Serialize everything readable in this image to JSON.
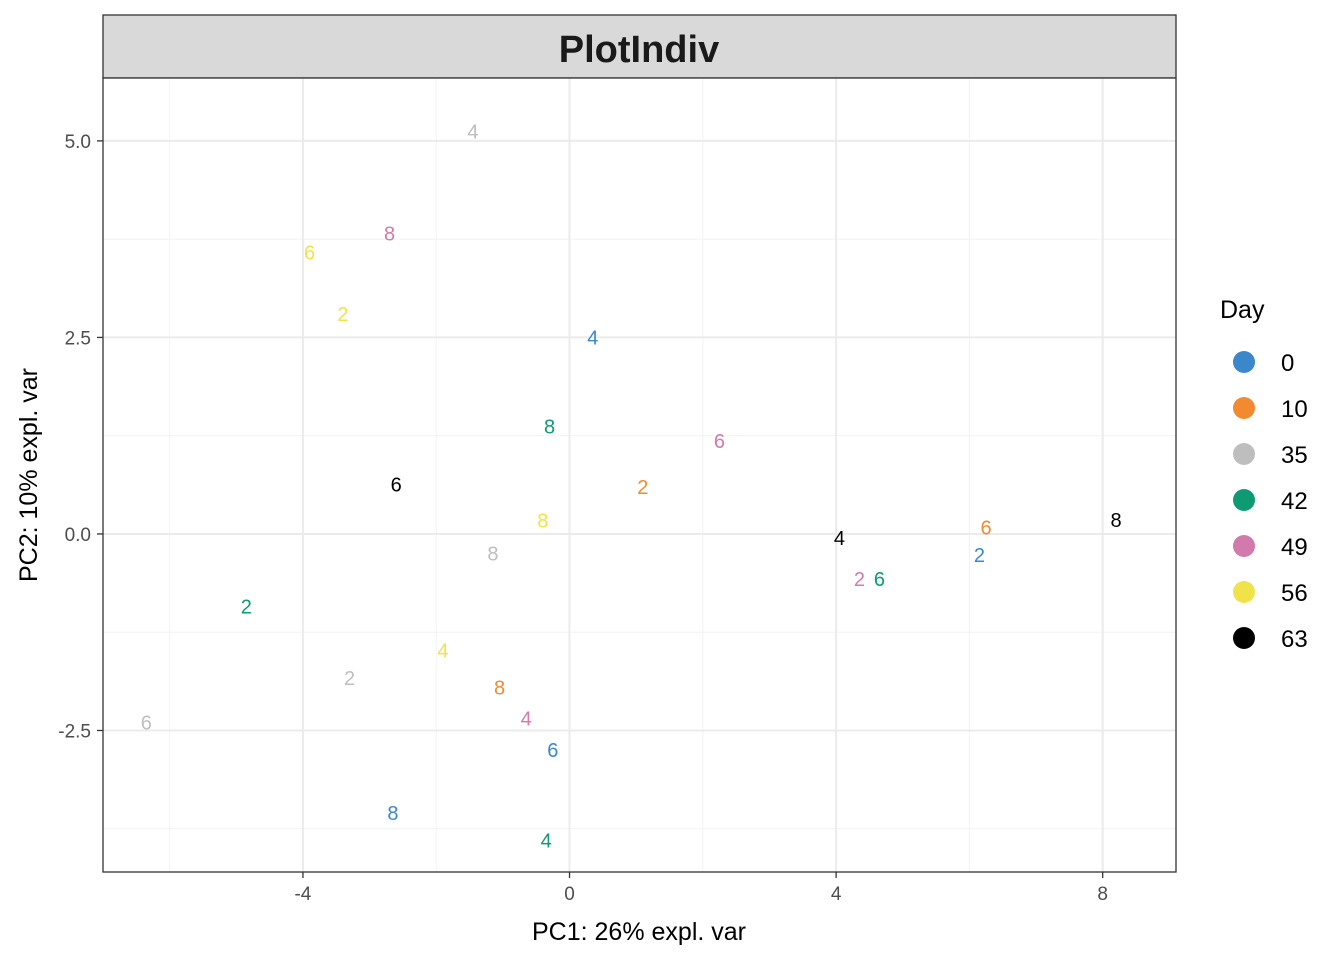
{
  "chart_data": {
    "type": "scatter",
    "title": "PlotIndiv",
    "xlabel": "PC1: 26% expl. var",
    "ylabel": "PC2: 10% expl. var",
    "xlim": [
      -7.0,
      9.1
    ],
    "ylim": [
      -4.3,
      5.8
    ],
    "x_ticks": [
      -4,
      0,
      4,
      8
    ],
    "x_tick_labels": [
      "-4",
      "0",
      "4",
      "8"
    ],
    "y_ticks": [
      -2.5,
      0.0,
      2.5,
      5.0
    ],
    "y_tick_labels": [
      "-2.5",
      "0.0",
      "2.5",
      "5.0"
    ],
    "grid": true,
    "legend": {
      "title": "Day",
      "position": "right",
      "entries": [
        {
          "label": "0",
          "color": "#3a87cb"
        },
        {
          "label": "10",
          "color": "#f28a30"
        },
        {
          "label": "35",
          "color": "#bebebe"
        },
        {
          "label": "42",
          "color": "#0e9a72"
        },
        {
          "label": "49",
          "color": "#d27aab"
        },
        {
          "label": "56",
          "color": "#f0e34a"
        },
        {
          "label": "63",
          "color": "#000000"
        }
      ]
    },
    "series": [
      {
        "name": "0",
        "color": "#3a87cb",
        "points": [
          {
            "x": 0.35,
            "y": 2.5,
            "label": "4"
          },
          {
            "x": 6.15,
            "y": -0.27,
            "label": "2"
          },
          {
            "x": -0.25,
            "y": -2.75,
            "label": "6"
          },
          {
            "x": -2.65,
            "y": -3.55,
            "label": "8"
          }
        ]
      },
      {
        "name": "10",
        "color": "#f28a30",
        "points": [
          {
            "x": 1.1,
            "y": 0.6,
            "label": "2"
          },
          {
            "x": 6.25,
            "y": 0.08,
            "label": "6"
          },
          {
            "x": -1.05,
            "y": -1.95,
            "label": "8"
          }
        ]
      },
      {
        "name": "35",
        "color": "#bebebe",
        "points": [
          {
            "x": -1.45,
            "y": 5.12,
            "label": "4"
          },
          {
            "x": -1.15,
            "y": -0.25,
            "label": "8"
          },
          {
            "x": -3.3,
            "y": -1.83,
            "label": "2"
          },
          {
            "x": -6.35,
            "y": -2.4,
            "label": "6"
          }
        ]
      },
      {
        "name": "42",
        "color": "#0e9a72",
        "points": [
          {
            "x": -0.3,
            "y": 1.37,
            "label": "8"
          },
          {
            "x": -4.85,
            "y": -0.92,
            "label": "2"
          },
          {
            "x": 4.65,
            "y": -0.57,
            "label": "6"
          },
          {
            "x": -0.35,
            "y": -3.9,
            "label": "4"
          }
        ]
      },
      {
        "name": "49",
        "color": "#d27aab",
        "points": [
          {
            "x": -2.7,
            "y": 3.82,
            "label": "8"
          },
          {
            "x": 2.25,
            "y": 1.18,
            "label": "6"
          },
          {
            "x": 4.35,
            "y": -0.57,
            "label": "2"
          },
          {
            "x": -0.65,
            "y": -2.35,
            "label": "4"
          }
        ]
      },
      {
        "name": "56",
        "color": "#f0e34a",
        "points": [
          {
            "x": -3.9,
            "y": 3.58,
            "label": "6"
          },
          {
            "x": -3.4,
            "y": 2.8,
            "label": "2"
          },
          {
            "x": -0.4,
            "y": 0.17,
            "label": "8"
          },
          {
            "x": -1.9,
            "y": -1.48,
            "label": "4"
          }
        ]
      },
      {
        "name": "63",
        "color": "#000000",
        "points": [
          {
            "x": -2.6,
            "y": 0.63,
            "label": "6"
          },
          {
            "x": 4.05,
            "y": -0.05,
            "label": "4"
          },
          {
            "x": 8.2,
            "y": 0.18,
            "label": "8"
          }
        ]
      }
    ]
  }
}
